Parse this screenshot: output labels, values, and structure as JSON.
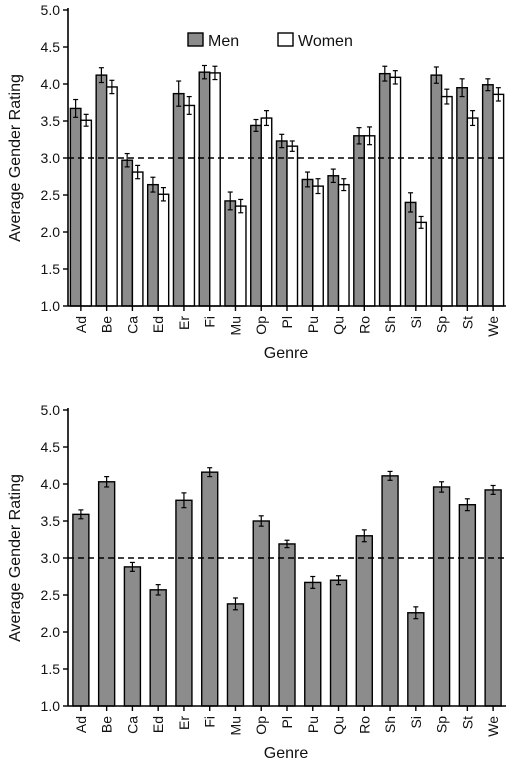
{
  "chart_data": [
    {
      "type": "bar",
      "title": "",
      "xlabel": "Genre",
      "ylabel": "Average Gender Rating",
      "ylim": [
        1.0,
        5.0
      ],
      "yticks": [
        "1.0",
        "1.5",
        "2.0",
        "2.5",
        "3.0",
        "3.5",
        "4.0",
        "4.5",
        "5.0"
      ],
      "reference_line": 3.0,
      "legend": "top-center",
      "categories": [
        "Ad",
        "Be",
        "Ca",
        "Ed",
        "Er",
        "Fi",
        "Mu",
        "Op",
        "Pl",
        "Pu",
        "Qu",
        "Ro",
        "Sh",
        "Si",
        "Sp",
        "St",
        "We"
      ],
      "series": [
        {
          "name": "Men",
          "color": "#8c8c8c",
          "values": [
            3.67,
            4.12,
            2.97,
            2.64,
            3.87,
            4.16,
            2.42,
            3.44,
            3.23,
            2.71,
            2.76,
            3.3,
            4.14,
            2.4,
            4.12,
            3.95,
            3.99
          ],
          "errors": [
            0.12,
            0.1,
            0.09,
            0.1,
            0.17,
            0.09,
            0.12,
            0.08,
            0.09,
            0.1,
            0.09,
            0.11,
            0.1,
            0.13,
            0.11,
            0.12,
            0.08
          ]
        },
        {
          "name": "Women",
          "color": "#ffffff",
          "values": [
            3.51,
            3.96,
            2.81,
            2.51,
            3.71,
            4.15,
            2.35,
            3.54,
            3.16,
            2.62,
            2.64,
            3.3,
            4.09,
            2.13,
            3.83,
            3.54,
            3.86
          ],
          "errors": [
            0.08,
            0.09,
            0.09,
            0.09,
            0.12,
            0.09,
            0.09,
            0.1,
            0.07,
            0.1,
            0.08,
            0.12,
            0.09,
            0.08,
            0.1,
            0.1,
            0.09
          ]
        }
      ]
    },
    {
      "type": "bar",
      "title": "",
      "xlabel": "Genre",
      "ylabel": "Average Gender Rating",
      "ylim": [
        1.0,
        5.0
      ],
      "yticks": [
        "1.0",
        "1.5",
        "2.0",
        "2.5",
        "3.0",
        "3.5",
        "4.0",
        "4.5",
        "5.0"
      ],
      "reference_line": 3.0,
      "categories": [
        "Ad",
        "Be",
        "Ca",
        "Ed",
        "Er",
        "Fi",
        "Mu",
        "Op",
        "Pl",
        "Pu",
        "Qu",
        "Ro",
        "Sh",
        "Si",
        "Sp",
        "St",
        "We"
      ],
      "series": [
        {
          "color": "#8c8c8c",
          "values": [
            3.59,
            4.03,
            2.88,
            2.57,
            3.78,
            4.16,
            2.38,
            3.5,
            3.19,
            2.67,
            2.7,
            3.3,
            4.11,
            2.26,
            3.96,
            3.72,
            3.92
          ],
          "errors": [
            0.06,
            0.07,
            0.06,
            0.07,
            0.1,
            0.06,
            0.08,
            0.07,
            0.05,
            0.08,
            0.06,
            0.08,
            0.06,
            0.08,
            0.07,
            0.08,
            0.06
          ]
        }
      ]
    }
  ]
}
